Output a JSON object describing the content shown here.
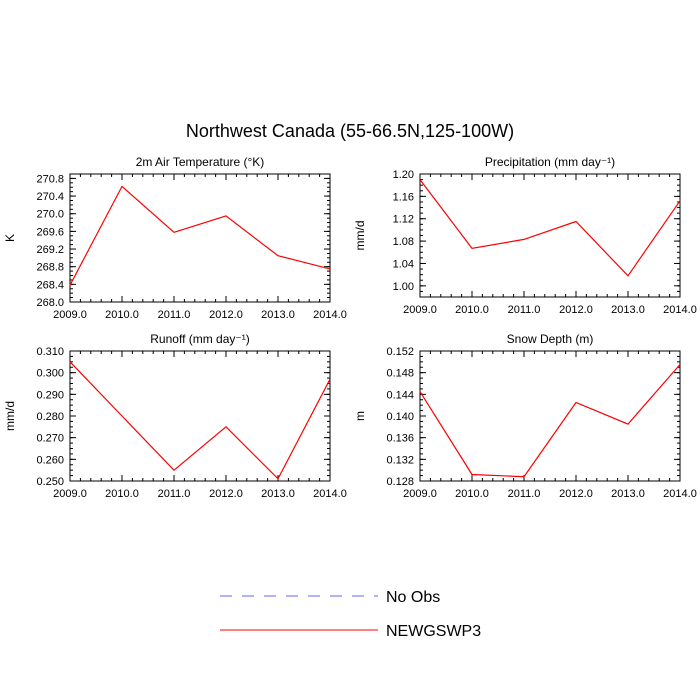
{
  "figure": {
    "title": "Northwest Canada (55-66.5N,125-100W)"
  },
  "legend": {
    "entries": [
      {
        "label": "No Obs",
        "color": "#6666ff",
        "dash": true
      },
      {
        "label": "NEWGSWP3",
        "color": "#ff0000",
        "dash": false
      }
    ]
  },
  "chart_data": [
    {
      "type": "line",
      "title": "2m Air Temperature (°K)",
      "ylabel": "K",
      "x": [
        2009,
        2010,
        2011,
        2012,
        2013,
        2014
      ],
      "xlim": [
        2009,
        2014
      ],
      "xticks": [
        "2009.0",
        "2010.0",
        "2011.0",
        "2012.0",
        "2013.0",
        "2014.0"
      ],
      "ylim": [
        268.0,
        270.9
      ],
      "yticks": [
        "268.0",
        "268.4",
        "268.8",
        "269.2",
        "269.6",
        "270.0",
        "270.4",
        "270.8"
      ],
      "ytick_values": [
        268.0,
        268.4,
        268.8,
        269.2,
        269.6,
        270.0,
        270.4,
        270.8
      ],
      "series": [
        {
          "name": "NEWGSWP3",
          "color": "#ff0000",
          "values": [
            268.38,
            270.62,
            269.58,
            269.95,
            269.05,
            268.75
          ]
        }
      ]
    },
    {
      "type": "line",
      "title": "Precipitation (mm day⁻¹)",
      "ylabel": "mm/d",
      "x": [
        2009,
        2010,
        2011,
        2012,
        2013,
        2014
      ],
      "xlim": [
        2009,
        2014
      ],
      "xticks": [
        "2009.0",
        "2010.0",
        "2011.0",
        "2012.0",
        "2013.0",
        "2014.0"
      ],
      "ylim": [
        0.98,
        1.2
      ],
      "yticks": [
        "1.00",
        "1.04",
        "1.08",
        "1.12",
        "1.16",
        "1.20"
      ],
      "ytick_values": [
        1.0,
        1.04,
        1.08,
        1.12,
        1.16,
        1.2
      ],
      "series": [
        {
          "name": "NEWGSWP3",
          "color": "#ff0000",
          "values": [
            1.19,
            1.067,
            1.083,
            1.115,
            1.018,
            1.152
          ]
        }
      ]
    },
    {
      "type": "line",
      "title": "Runoff (mm day⁻¹)",
      "ylabel": "mm/d",
      "x": [
        2009,
        2010,
        2011,
        2012,
        2013,
        2014
      ],
      "xlim": [
        2009,
        2014
      ],
      "xticks": [
        "2009.0",
        "2010.0",
        "2011.0",
        "2012.0",
        "2013.0",
        "2014.0"
      ],
      "ylim": [
        0.25,
        0.31
      ],
      "yticks": [
        "0.250",
        "0.260",
        "0.270",
        "0.280",
        "0.290",
        "0.300",
        "0.310"
      ],
      "ytick_values": [
        0.25,
        0.26,
        0.27,
        0.28,
        0.29,
        0.3,
        0.31
      ],
      "series": [
        {
          "name": "NEWGSWP3",
          "color": "#ff0000",
          "values": [
            0.305,
            0.28,
            0.255,
            0.275,
            0.251,
            0.297
          ]
        }
      ]
    },
    {
      "type": "line",
      "title": "Snow Depth (m)",
      "ylabel": "m",
      "x": [
        2009,
        2010,
        2011,
        2012,
        2013,
        2014
      ],
      "xlim": [
        2009,
        2014
      ],
      "xticks": [
        "2009.0",
        "2010.0",
        "2011.0",
        "2012.0",
        "2013.0",
        "2014.0"
      ],
      "ylim": [
        0.128,
        0.152
      ],
      "yticks": [
        "0.128",
        "0.132",
        "0.136",
        "0.140",
        "0.144",
        "0.148",
        "0.152"
      ],
      "ytick_values": [
        0.128,
        0.132,
        0.136,
        0.14,
        0.144,
        0.148,
        0.152
      ],
      "series": [
        {
          "name": "NEWGSWP3",
          "color": "#ff0000",
          "values": [
            0.1445,
            0.1292,
            0.1288,
            0.1425,
            0.1385,
            0.1495
          ]
        }
      ]
    }
  ]
}
